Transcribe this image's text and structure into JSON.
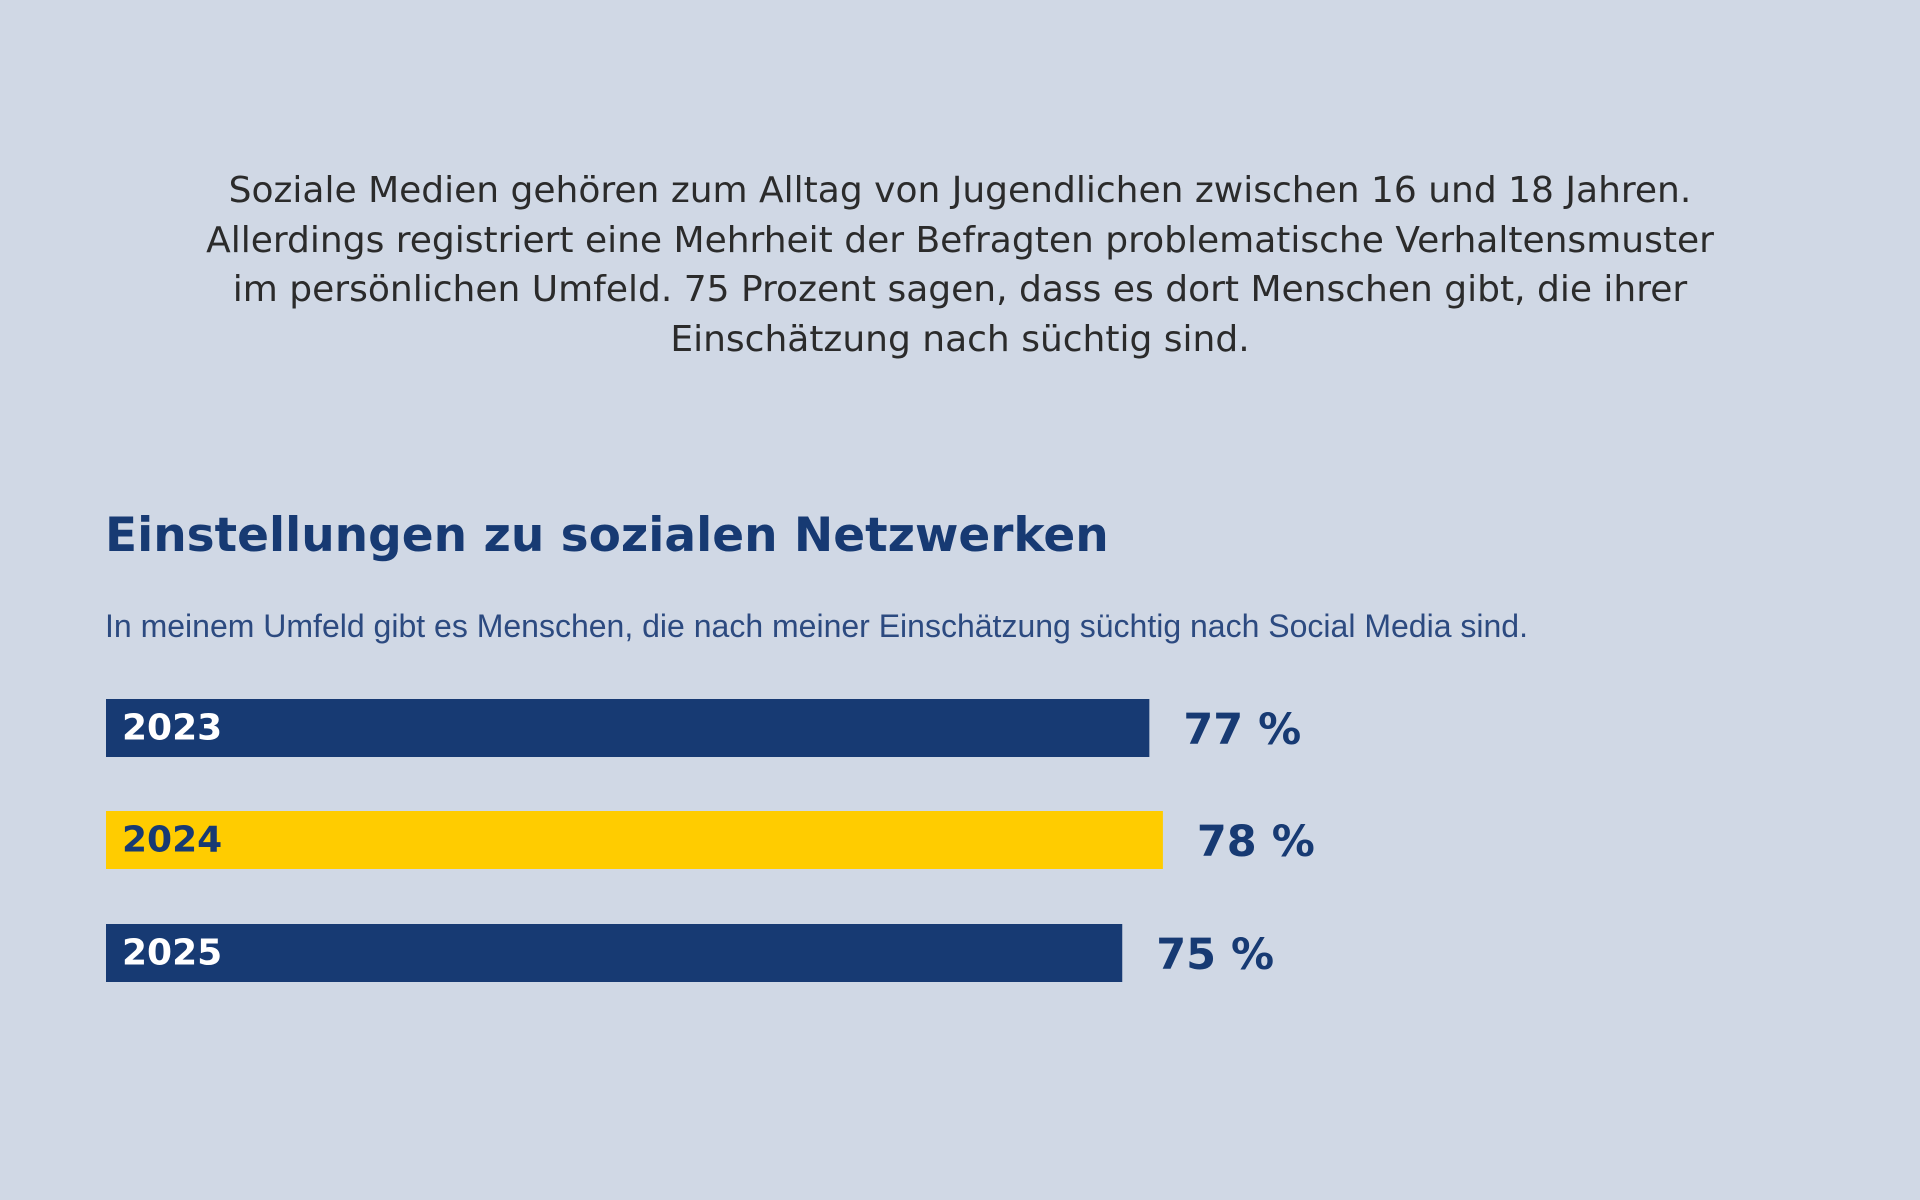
{
  "intro": {
    "lines": [
      "Soziale Medien gehören zum Alltag von Jugendlichen zwischen 16 und 18 Jahren.",
      "Allerdings registriert eine Mehrheit der Befragten problematische Verhaltensmuster",
      "im persönlichen Umfeld. 75 Prozent sagen, dass es dort Menschen gibt, die ihrer",
      "Einschätzung nach süchtig sind."
    ]
  },
  "chart_data": {
    "type": "bar",
    "orientation": "horizontal",
    "title": "Einstellungen zu sozialen Netzwerken",
    "subtitle": "In meinem Umfeld gibt es Menschen, die nach meiner Einschätzung süchtig nach Social Media sind.",
    "categories": [
      "2023",
      "2024",
      "2025"
    ],
    "values": [
      77,
      78,
      75
    ],
    "value_labels": [
      "77 %",
      "78 %",
      "75 %"
    ],
    "unit": "%",
    "xlim": [
      0,
      100
    ],
    "grid": false,
    "legend": "none",
    "colors": [
      "#173a73",
      "#ffcc00",
      "#173a73"
    ],
    "label_colors": [
      "#ffffff",
      "#173a73",
      "#ffffff"
    ]
  },
  "colors": {
    "background": "#d0d8e5",
    "primary": "#173a73",
    "accent": "#ffcc00",
    "text": "#2b2b2b"
  }
}
